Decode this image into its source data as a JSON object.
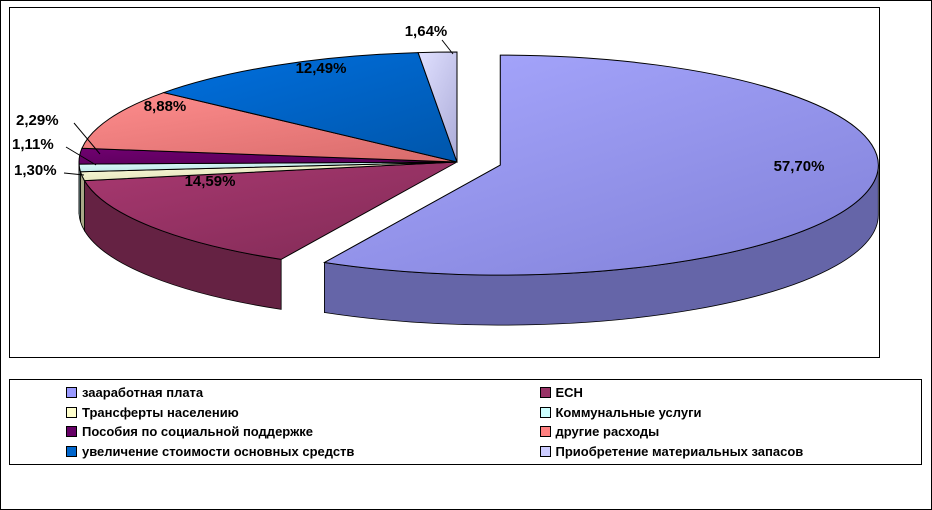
{
  "chart_data": {
    "type": "pie",
    "style": "3d-exploded",
    "title": "",
    "legend_position": "bottom",
    "slices": [
      {
        "label": "зааработная плата",
        "value": 57.7,
        "pct": "57,70%",
        "color": "#9999FF",
        "exploded": true
      },
      {
        "label": "ЕСН",
        "value": 14.59,
        "pct": "14,59%",
        "color": "#993366",
        "exploded": false
      },
      {
        "label": "Трансферты населению",
        "value": 1.3,
        "pct": "1,30%",
        "color": "#FFFFCC",
        "exploded": false
      },
      {
        "label": "Коммунальные услуги",
        "value": 1.11,
        "pct": "1,11%",
        "color": "#CCFFFF",
        "exploded": false
      },
      {
        "label": "Пособия по социальной поддержке",
        "value": 2.29,
        "pct": "2,29%",
        "color": "#660066",
        "exploded": false
      },
      {
        "label": "другие расходы",
        "value": 8.88,
        "pct": "8,88%",
        "color": "#FF8080",
        "exploded": false
      },
      {
        "label": "увеличение стоимости основных средств",
        "value": 12.49,
        "pct": "12,49%",
        "color": "#0066CC",
        "exploded": false
      },
      {
        "label": "Приобретение материальных запасов",
        "value": 1.64,
        "pct": "1,64%",
        "color": "#CCCCFF",
        "exploded": false
      }
    ]
  }
}
